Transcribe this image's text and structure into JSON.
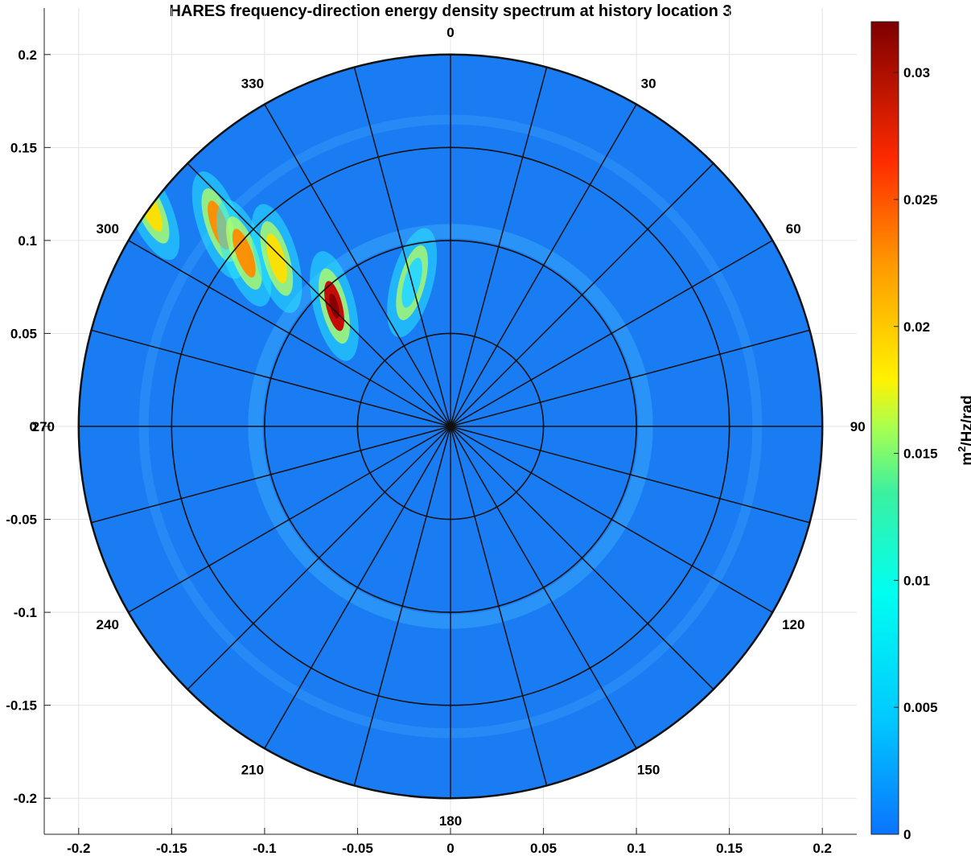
{
  "chart_data": {
    "type": "polar-contour",
    "title": "HARES frequency-direction energy density spectrum at history location 3",
    "x_ticks": [
      "-0.2",
      "-0.15",
      "-0.1",
      "-0.05",
      "0",
      "0.05",
      "0.1",
      "0.15",
      "0.2"
    ],
    "y_ticks": [
      "0.2",
      "0.15",
      "0.1",
      "0.05",
      "0",
      "-0.05",
      "-0.1",
      "-0.15",
      "-0.2"
    ],
    "xlim": [
      -0.22,
      0.22
    ],
    "ylim": [
      -0.22,
      0.22
    ],
    "grid": true,
    "frequency_radius_max": 0.2,
    "frequency_rings": [
      0.05,
      0.1,
      0.15,
      0.2
    ],
    "spoke_step_deg": 15,
    "direction_labels": [
      {
        "deg": 0,
        "text": "0"
      },
      {
        "deg": 30,
        "text": "30"
      },
      {
        "deg": 60,
        "text": "60"
      },
      {
        "deg": 90,
        "text": "90"
      },
      {
        "deg": 120,
        "text": "120"
      },
      {
        "deg": 150,
        "text": "150"
      },
      {
        "deg": 180,
        "text": "180"
      },
      {
        "deg": 210,
        "text": "210"
      },
      {
        "deg": 240,
        "text": "240"
      },
      {
        "deg": 270,
        "text": "270"
      },
      {
        "deg": 300,
        "text": "300"
      },
      {
        "deg": 330,
        "text": "330"
      }
    ],
    "energy_peaks": [
      {
        "direction_deg": 316,
        "frequency": 0.09,
        "value": 0.03
      },
      {
        "direction_deg": 311,
        "frequency": 0.165,
        "value": 0.022
      },
      {
        "direction_deg": 310,
        "frequency": 0.145,
        "value": 0.021
      },
      {
        "direction_deg": 314,
        "frequency": 0.13,
        "value": 0.018
      },
      {
        "direction_deg": 306,
        "frequency": 0.2,
        "value": 0.016
      },
      {
        "direction_deg": 345,
        "frequency": 0.08,
        "value": 0.007
      }
    ],
    "colorbar": {
      "label": "m²/Hz/rad",
      "label_base": "m",
      "label_sup": "2",
      "label_rest": "/Hz/rad",
      "min": 0,
      "max": 0.032,
      "ticks": [
        "0",
        "0.005",
        "0.01",
        "0.015",
        "0.02",
        "0.025",
        "0.03"
      ],
      "tick_values": [
        0,
        0.005,
        0.01,
        0.015,
        0.02,
        0.025,
        0.03
      ],
      "colormap": "jet"
    }
  }
}
